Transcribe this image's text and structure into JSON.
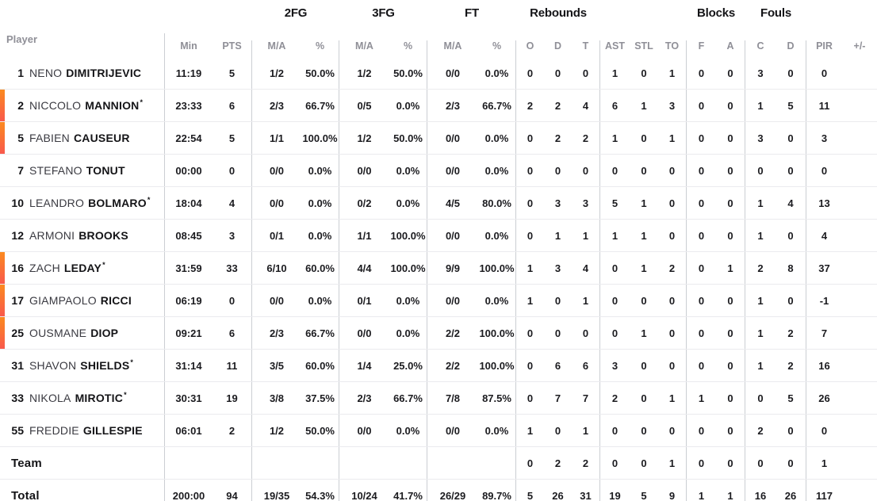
{
  "table": {
    "group_headers": {
      "fg2": "2FG",
      "fg3": "3FG",
      "ft": "FT",
      "rebounds": "Rebounds",
      "blocks": "Blocks",
      "fouls": "Fouls"
    },
    "sub_headers": {
      "player": "Player",
      "min": "Min",
      "pts": "PTS",
      "ma": "M/A",
      "pct": "%",
      "reb_o": "O",
      "reb_d": "D",
      "reb_t": "T",
      "ast": "AST",
      "stl": "STL",
      "to": "TO",
      "blk_f": "F",
      "blk_a": "A",
      "foul_c": "C",
      "foul_d": "D",
      "pir": "PIR",
      "plus_minus": "+/-"
    }
  },
  "colors": {
    "accent_top": "#fb8a1f",
    "accent_bottom": "#f9594c",
    "text": "#1b1b1f",
    "muted_header": "#8f8f97",
    "divider": "#cbced3",
    "row_separator": "#ebebee"
  },
  "rows": [
    {
      "type": "player",
      "num": "1",
      "first": "NENO",
      "last": "DIMITRIJEVIC",
      "starter": false,
      "on_court": false,
      "min": "11:19",
      "pts": "5",
      "fg2_ma": "1/2",
      "fg2_pct": "50.0%",
      "fg3_ma": "1/2",
      "fg3_pct": "50.0%",
      "ft_ma": "0/0",
      "ft_pct": "0.0%",
      "reb_o": "0",
      "reb_d": "0",
      "reb_t": "0",
      "ast": "1",
      "stl": "0",
      "to": "1",
      "blk_f": "0",
      "blk_a": "0",
      "foul_c": "3",
      "foul_d": "0",
      "pir": "0",
      "plus_minus": ""
    },
    {
      "type": "player",
      "num": "2",
      "first": "NICCOLO",
      "last": "MANNION",
      "starter": true,
      "on_court": true,
      "min": "23:33",
      "pts": "6",
      "fg2_ma": "2/3",
      "fg2_pct": "66.7%",
      "fg3_ma": "0/5",
      "fg3_pct": "0.0%",
      "ft_ma": "2/3",
      "ft_pct": "66.7%",
      "reb_o": "2",
      "reb_d": "2",
      "reb_t": "4",
      "ast": "6",
      "stl": "1",
      "to": "3",
      "blk_f": "0",
      "blk_a": "0",
      "foul_c": "1",
      "foul_d": "5",
      "pir": "11",
      "plus_minus": ""
    },
    {
      "type": "player",
      "num": "5",
      "first": "FABIEN",
      "last": "CAUSEUR",
      "starter": false,
      "on_court": true,
      "min": "22:54",
      "pts": "5",
      "fg2_ma": "1/1",
      "fg2_pct": "100.0%",
      "fg3_ma": "1/2",
      "fg3_pct": "50.0%",
      "ft_ma": "0/0",
      "ft_pct": "0.0%",
      "reb_o": "0",
      "reb_d": "2",
      "reb_t": "2",
      "ast": "1",
      "stl": "0",
      "to": "1",
      "blk_f": "0",
      "blk_a": "0",
      "foul_c": "3",
      "foul_d": "0",
      "pir": "3",
      "plus_minus": ""
    },
    {
      "type": "player",
      "num": "7",
      "first": "STEFANO",
      "last": "TONUT",
      "starter": false,
      "on_court": false,
      "min": "00:00",
      "pts": "0",
      "fg2_ma": "0/0",
      "fg2_pct": "0.0%",
      "fg3_ma": "0/0",
      "fg3_pct": "0.0%",
      "ft_ma": "0/0",
      "ft_pct": "0.0%",
      "reb_o": "0",
      "reb_d": "0",
      "reb_t": "0",
      "ast": "0",
      "stl": "0",
      "to": "0",
      "blk_f": "0",
      "blk_a": "0",
      "foul_c": "0",
      "foul_d": "0",
      "pir": "0",
      "plus_minus": ""
    },
    {
      "type": "player",
      "num": "10",
      "first": "LEANDRO",
      "last": "BOLMARO",
      "starter": true,
      "on_court": false,
      "min": "18:04",
      "pts": "4",
      "fg2_ma": "0/0",
      "fg2_pct": "0.0%",
      "fg3_ma": "0/2",
      "fg3_pct": "0.0%",
      "ft_ma": "4/5",
      "ft_pct": "80.0%",
      "reb_o": "0",
      "reb_d": "3",
      "reb_t": "3",
      "ast": "5",
      "stl": "1",
      "to": "0",
      "blk_f": "0",
      "blk_a": "0",
      "foul_c": "1",
      "foul_d": "4",
      "pir": "13",
      "plus_minus": ""
    },
    {
      "type": "player",
      "num": "12",
      "first": "ARMONI",
      "last": "BROOKS",
      "starter": false,
      "on_court": false,
      "min": "08:45",
      "pts": "3",
      "fg2_ma": "0/1",
      "fg2_pct": "0.0%",
      "fg3_ma": "1/1",
      "fg3_pct": "100.0%",
      "ft_ma": "0/0",
      "ft_pct": "0.0%",
      "reb_o": "0",
      "reb_d": "1",
      "reb_t": "1",
      "ast": "1",
      "stl": "1",
      "to": "0",
      "blk_f": "0",
      "blk_a": "0",
      "foul_c": "1",
      "foul_d": "0",
      "pir": "4",
      "plus_minus": ""
    },
    {
      "type": "player",
      "num": "16",
      "first": "ZACH",
      "last": "LEDAY",
      "starter": true,
      "on_court": true,
      "min": "31:59",
      "pts": "33",
      "fg2_ma": "6/10",
      "fg2_pct": "60.0%",
      "fg3_ma": "4/4",
      "fg3_pct": "100.0%",
      "ft_ma": "9/9",
      "ft_pct": "100.0%",
      "reb_o": "1",
      "reb_d": "3",
      "reb_t": "4",
      "ast": "0",
      "stl": "1",
      "to": "2",
      "blk_f": "0",
      "blk_a": "1",
      "foul_c": "2",
      "foul_d": "8",
      "pir": "37",
      "plus_minus": ""
    },
    {
      "type": "player",
      "num": "17",
      "first": "GIAMPAOLO",
      "last": "RICCI",
      "starter": false,
      "on_court": true,
      "min": "06:19",
      "pts": "0",
      "fg2_ma": "0/0",
      "fg2_pct": "0.0%",
      "fg3_ma": "0/1",
      "fg3_pct": "0.0%",
      "ft_ma": "0/0",
      "ft_pct": "0.0%",
      "reb_o": "1",
      "reb_d": "0",
      "reb_t": "1",
      "ast": "0",
      "stl": "0",
      "to": "0",
      "blk_f": "0",
      "blk_a": "0",
      "foul_c": "1",
      "foul_d": "0",
      "pir": "-1",
      "plus_minus": ""
    },
    {
      "type": "player",
      "num": "25",
      "first": "OUSMANE",
      "last": "DIOP",
      "starter": false,
      "on_court": true,
      "min": "09:21",
      "pts": "6",
      "fg2_ma": "2/3",
      "fg2_pct": "66.7%",
      "fg3_ma": "0/0",
      "fg3_pct": "0.0%",
      "ft_ma": "2/2",
      "ft_pct": "100.0%",
      "reb_o": "0",
      "reb_d": "0",
      "reb_t": "0",
      "ast": "0",
      "stl": "1",
      "to": "0",
      "blk_f": "0",
      "blk_a": "0",
      "foul_c": "1",
      "foul_d": "2",
      "pir": "7",
      "plus_minus": ""
    },
    {
      "type": "player",
      "num": "31",
      "first": "SHAVON",
      "last": "SHIELDS",
      "starter": true,
      "on_court": false,
      "min": "31:14",
      "pts": "11",
      "fg2_ma": "3/5",
      "fg2_pct": "60.0%",
      "fg3_ma": "1/4",
      "fg3_pct": "25.0%",
      "ft_ma": "2/2",
      "ft_pct": "100.0%",
      "reb_o": "0",
      "reb_d": "6",
      "reb_t": "6",
      "ast": "3",
      "stl": "0",
      "to": "0",
      "blk_f": "0",
      "blk_a": "0",
      "foul_c": "1",
      "foul_d": "2",
      "pir": "16",
      "plus_minus": ""
    },
    {
      "type": "player",
      "num": "33",
      "first": "NIKOLA",
      "last": "MIROTIC",
      "starter": true,
      "on_court": false,
      "min": "30:31",
      "pts": "19",
      "fg2_ma": "3/8",
      "fg2_pct": "37.5%",
      "fg3_ma": "2/3",
      "fg3_pct": "66.7%",
      "ft_ma": "7/8",
      "ft_pct": "87.5%",
      "reb_o": "0",
      "reb_d": "7",
      "reb_t": "7",
      "ast": "2",
      "stl": "0",
      "to": "1",
      "blk_f": "1",
      "blk_a": "0",
      "foul_c": "0",
      "foul_d": "5",
      "pir": "26",
      "plus_minus": ""
    },
    {
      "type": "player",
      "num": "55",
      "first": "FREDDIE",
      "last": "GILLESPIE",
      "starter": false,
      "on_court": false,
      "min": "06:01",
      "pts": "2",
      "fg2_ma": "1/2",
      "fg2_pct": "50.0%",
      "fg3_ma": "0/0",
      "fg3_pct": "0.0%",
      "ft_ma": "0/0",
      "ft_pct": "0.0%",
      "reb_o": "1",
      "reb_d": "0",
      "reb_t": "1",
      "ast": "0",
      "stl": "0",
      "to": "0",
      "blk_f": "0",
      "blk_a": "0",
      "foul_c": "2",
      "foul_d": "0",
      "pir": "0",
      "plus_minus": ""
    },
    {
      "type": "team",
      "label": "Team",
      "min": "",
      "pts": "",
      "fg2_ma": "",
      "fg2_pct": "",
      "fg3_ma": "",
      "fg3_pct": "",
      "ft_ma": "",
      "ft_pct": "",
      "reb_o": "0",
      "reb_d": "2",
      "reb_t": "2",
      "ast": "0",
      "stl": "0",
      "to": "1",
      "blk_f": "0",
      "blk_a": "0",
      "foul_c": "0",
      "foul_d": "0",
      "pir": "1",
      "plus_minus": ""
    },
    {
      "type": "total",
      "label": "Total",
      "min": "200:00",
      "pts": "94",
      "fg2_ma": "19/35",
      "fg2_pct": "54.3%",
      "fg3_ma": "10/24",
      "fg3_pct": "41.7%",
      "ft_ma": "26/29",
      "ft_pct": "89.7%",
      "reb_o": "5",
      "reb_d": "26",
      "reb_t": "31",
      "ast": "19",
      "stl": "5",
      "to": "9",
      "blk_f": "1",
      "blk_a": "1",
      "foul_c": "16",
      "foul_d": "26",
      "pir": "117",
      "plus_minus": ""
    }
  ]
}
